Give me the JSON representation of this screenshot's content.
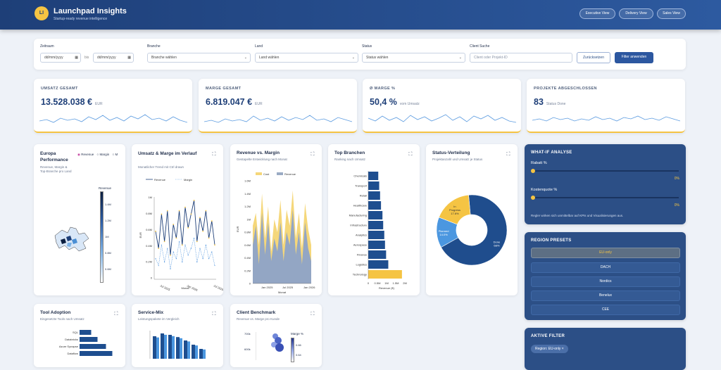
{
  "app": {
    "logo": "LI",
    "title": "Launchpad Insights",
    "subtitle": "Startup-ready revenue intelligence"
  },
  "header_buttons": [
    "Executive View",
    "Delivery View",
    "Sales View"
  ],
  "filters": {
    "zeitraum_label": "Zeitraum",
    "date_from": "dd/mm/yyyy",
    "bis": "bis",
    "date_to": "dd/mm/yyyy",
    "branche_label": "Branche",
    "branche_value": "Branche wählen",
    "land_label": "Land",
    "land_value": "Land wählen",
    "status_label": "Status",
    "status_value": "Status wählen",
    "client_label": "Client Suche",
    "client_placeholder": "Client oder Projekt-ID",
    "reset": "Zurücksetzen",
    "apply": "Filter anwenden"
  },
  "kpis": [
    {
      "label": "UMSATZ GESAMT",
      "value": "13.528.038 €",
      "unit": "EUR"
    },
    {
      "label": "MARGE GESAMT",
      "value": "6.819.047 €",
      "unit": "EUR"
    },
    {
      "label": "Ø MARGE %",
      "value": "50,4 %",
      "unit": "vom Umsatz"
    },
    {
      "label": "PROJEKTE ABGESCHLOSSEN",
      "value": "83",
      "unit": "Status Done"
    }
  ],
  "colors": {
    "primary": "#1e3f78",
    "accent": "#f5c443",
    "dark_panel": "#2c4f86",
    "light_blue": "#5b9be0"
  },
  "europa": {
    "title": "Europa Performance",
    "subtitle": "Revenue, Margin & Top-Branche pro Land",
    "radios": [
      "Revenue",
      "Margin",
      "M"
    ],
    "legend_title": "Revenue",
    "legend_ticks": [
      "1.4M",
      "1.2M",
      "1M",
      "0.8M",
      "0.6M"
    ]
  },
  "umsatz": {
    "title": "Umsatz & Marge im Verlauf",
    "subtitle": "Monatlicher Trend mit Ctrl drawn"
  },
  "revenue_margin": {
    "title": "Revenue vs. Margin",
    "subtitle": "Gestapelte Entwicklung nach Monat"
  },
  "top_branchen": {
    "title": "Top Branchen",
    "subtitle": "Ranking nach Umsatz"
  },
  "status_vert": {
    "title": "Status-Verteilung",
    "subtitle": "Projektanzahl und Umsatz je Status"
  },
  "tool": {
    "title": "Tool Adoption",
    "subtitle": "Eingesetzte Tools nach Umsatz",
    "labels": [
      "SQL",
      "Databricks",
      "Azure Synapse",
      "Dataflow"
    ]
  },
  "service": {
    "title": "Service-Mix",
    "subtitle": "Leistungspakete im Vergleich"
  },
  "client": {
    "title": "Client Benchmark",
    "subtitle": "Revenue vs. Marge pro Kunde",
    "legend_title": "Marge %",
    "ticks": [
      "700k",
      "600k"
    ],
    "legend_ticks": [
      "0.66",
      "0.64"
    ]
  },
  "whatif": {
    "title": "WHAT-IF ANALYSE",
    "rabatt_label": "Rabatt %",
    "rabatt_value": "0%",
    "kosten_label": "Kostenquote %",
    "kosten_value": "0%",
    "note": "Regler wirken sich unmittelbar auf KPIs und Visualisierungen aus."
  },
  "presets": {
    "title": "REGION PRESETS",
    "items": [
      "EU-only",
      "DACH",
      "Nordics",
      "Benelux",
      "CEE"
    ]
  },
  "active": {
    "title": "AKTIVE FILTER",
    "chip": "Region: EU-only"
  },
  "chart_data": [
    {
      "type": "line",
      "title": "Umsatz & Marge im Verlauf",
      "series": [
        {
          "name": "Revenue",
          "values": [
            0.7,
            0.45,
            0.95,
            0.55,
            1.0,
            0.35,
            0.8,
            0.6,
            1.0,
            0.5,
            1.05,
            0.75,
            0.95,
            1.15,
            0.55,
            0.9,
            0.7,
            1.0,
            0.6,
            0.85,
            0.5
          ]
        },
        {
          "name": "Margin",
          "values": [
            0.3,
            0.2,
            0.5,
            0.25,
            0.45,
            0.15,
            0.4,
            0.3,
            0.55,
            0.25,
            0.5,
            0.35,
            0.45,
            0.6,
            0.25,
            0.45,
            0.3,
            0.5,
            0.3,
            0.4,
            0.2
          ]
        }
      ],
      "y_ticks": [
        "1M",
        "0.8M",
        "0.6M",
        "0.4M",
        "0.2M",
        "0"
      ],
      "ylabel": "EUR",
      "xlabel": "Monat",
      "x_ticks": [
        "Jul 2025",
        "Jan 2026",
        "Jul 2026"
      ],
      "ylim": [
        0,
        1.2
      ]
    },
    {
      "type": "area",
      "title": "Revenue vs. Margin",
      "series": [
        {
          "name": "Revenue",
          "values": [
            0.9,
            1.1,
            0.6,
            1.4,
            0.7,
            1.2,
            0.5,
            1.0,
            0.8,
            1.3,
            0.6,
            1.15,
            0.9,
            1.45,
            0.7,
            1.1,
            0.55,
            1.25,
            0.85,
            0.6
          ]
        },
        {
          "name": "Cost",
          "values": [
            0.6,
            0.9,
            0.3,
            1.1,
            0.45,
            0.95,
            0.35,
            0.7,
            0.5,
            0.95,
            0.35,
            0.8,
            0.6,
            1.15,
            0.45,
            0.8,
            0.3,
            0.95,
            0.55,
            0.35
          ]
        }
      ],
      "y_ticks": [
        "1.6M",
        "1.4M",
        "1.2M",
        "1M",
        "0.8M",
        "0.6M",
        "0.4M",
        "0.2M",
        "0"
      ],
      "ylabel": "EUR",
      "xlabel": "Monat",
      "x_ticks": [
        "Jan 2025",
        "Jul 2025",
        "Jan 2026"
      ],
      "ylim": [
        0,
        1.6
      ]
    },
    {
      "type": "bar",
      "title": "Top Branchen",
      "categories": [
        "Chemicals",
        "Transport",
        "Retail",
        "Healthcare",
        "Manufacturing",
        "Infrastructure",
        "Analytics",
        "Aerospace",
        "Finance",
        "Logistics",
        "Technology"
      ],
      "values": [
        0.55,
        0.6,
        0.65,
        0.7,
        0.78,
        0.82,
        0.88,
        0.92,
        0.98,
        1.1,
        1.85
      ],
      "x_ticks": [
        "0",
        "0.5M",
        "1M",
        "1.5M",
        "2M"
      ],
      "xlabel": "Revenue (€)",
      "xlim": [
        0,
        2
      ]
    },
    {
      "type": "pie",
      "title": "Status-Verteilung",
      "slices": [
        {
          "label": "Done",
          "value": 68,
          "text": "Done 68%"
        },
        {
          "label": "Planned",
          "value": 14,
          "text": "Planned 14.0%"
        },
        {
          "label": "In Progress",
          "value": 17.6,
          "text": "In Progress 17.6%"
        }
      ]
    },
    {
      "type": "bar",
      "title": "Tool Adoption",
      "categories": [
        "SQL",
        "Databricks",
        "Azure Synapse",
        "Dataflow"
      ],
      "values": [
        0.55,
        0.65,
        0.85,
        0.95
      ]
    },
    {
      "type": "bar",
      "title": "Service-Mix",
      "categories": [
        "a",
        "b",
        "c",
        "d",
        "e",
        "f",
        "g"
      ],
      "values": [
        0.85,
        0.95,
        0.9,
        0.82,
        0.7,
        0.55,
        0.4
      ]
    },
    {
      "type": "scatter",
      "title": "Client Benchmark",
      "y_ticks": [
        "700k",
        "600k"
      ]
    }
  ]
}
